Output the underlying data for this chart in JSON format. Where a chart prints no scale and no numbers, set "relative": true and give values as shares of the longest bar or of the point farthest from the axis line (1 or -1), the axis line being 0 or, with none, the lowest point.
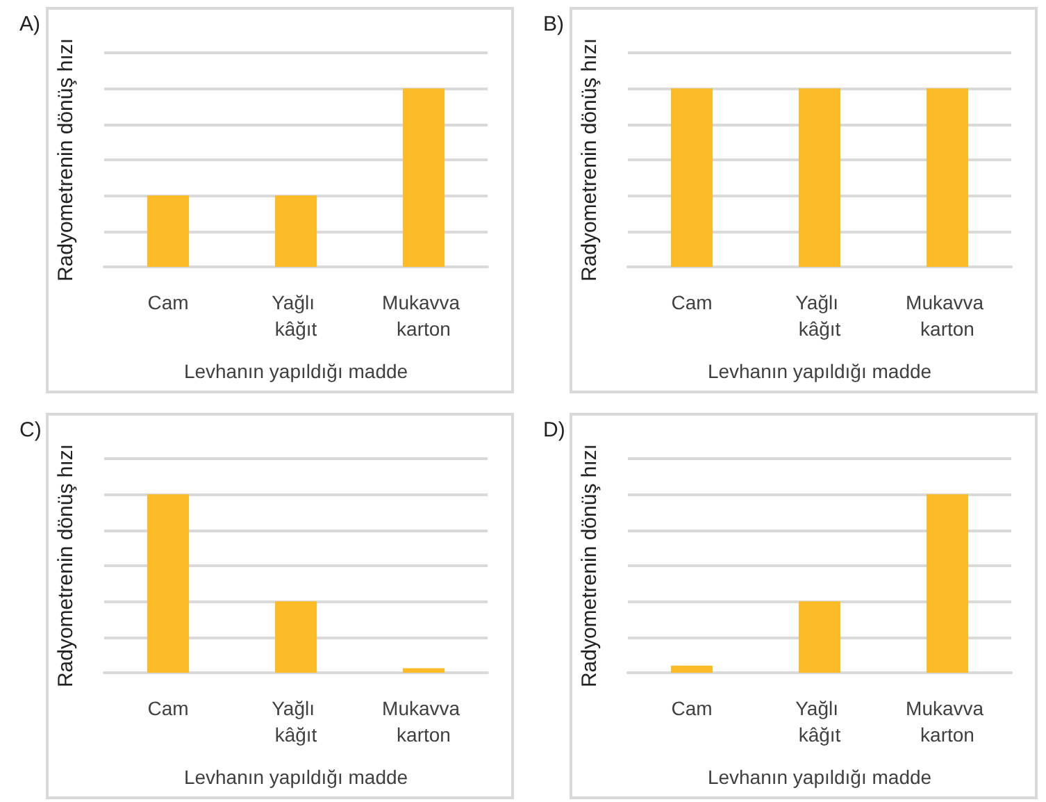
{
  "chart_data": [
    {
      "type": "bar",
      "title": "A)",
      "xlabel": "Levhanın yapıldığı madde",
      "ylabel": "Radyometrenin dönüş hızı",
      "categories": [
        "Cam",
        "Yağlı kâğıt",
        "Mukavva karton"
      ],
      "values": [
        0.4,
        0.4,
        1
      ],
      "color": "#fbbc28",
      "relative": true,
      "grid": "y"
    },
    {
      "type": "bar",
      "title": "B)",
      "xlabel": "Levhanın yapıldığı madde",
      "ylabel": "Radyometrenin dönüş hızı",
      "categories": [
        "Cam",
        "Yağlı kâğıt",
        "Mukavva karton"
      ],
      "values": [
        1,
        1,
        1
      ],
      "color": "#fbbc28",
      "relative": true,
      "grid": "y"
    },
    {
      "type": "bar",
      "title": "C)",
      "xlabel": "Levhanın yapıldığı madde",
      "ylabel": "Radyometrenin dönüş hızı",
      "categories": [
        "Cam",
        "Yağlı kâğıt",
        "Mukavva karton"
      ],
      "values": [
        1,
        0.4,
        0.025
      ],
      "color": "#fbbc28",
      "relative": true,
      "grid": "y"
    },
    {
      "type": "bar",
      "title": "D)",
      "xlabel": "Levhanın yapıldığı madde",
      "ylabel": "Radyometrenin dönüş hızı",
      "categories": [
        "Cam",
        "Yağlı kâğıt",
        "Mukavva karton"
      ],
      "values": [
        0.04,
        0.4,
        1
      ],
      "color": "#fbbc28",
      "relative": true,
      "grid": "y"
    }
  ]
}
